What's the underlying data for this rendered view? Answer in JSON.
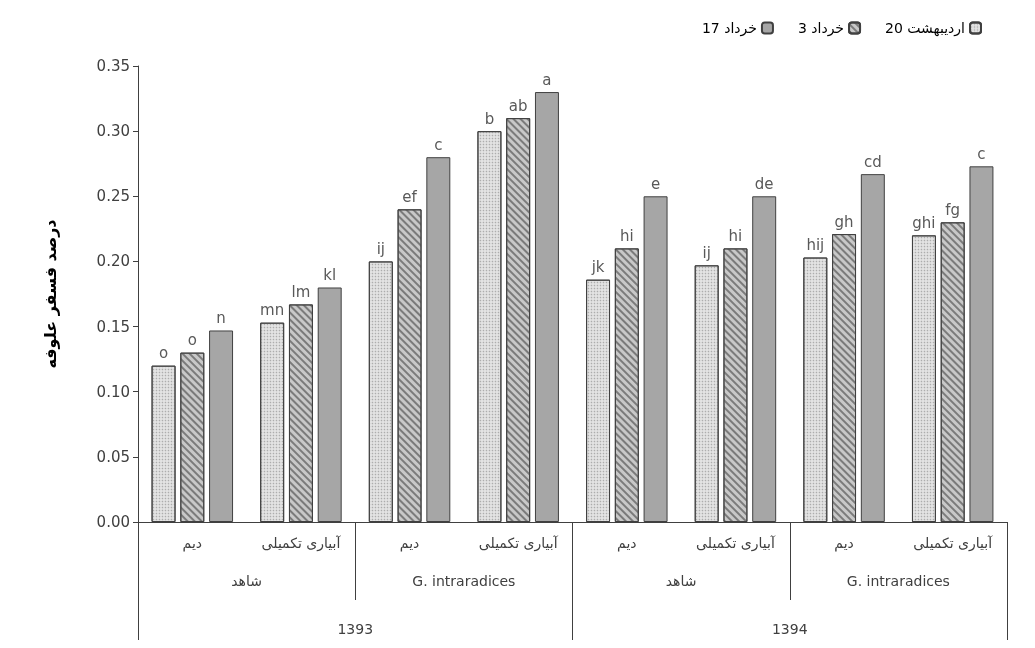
{
  "chart_data": {
    "type": "bar",
    "ylabel": "درصد فسفر علوفه",
    "categories": [
      "دیم",
      "آبیاری تکمیلی",
      "دیم",
      "آبیاری تکمیلی",
      "دیم",
      "آبیاری تکمیلی",
      "دیم",
      "آبیاری تکمیلی"
    ],
    "series": [
      {
        "name": "20 اردیبهشت",
        "color": "#e3e3e3",
        "values": [
          0.12,
          0.153,
          0.2,
          0.3,
          0.186,
          0.197,
          0.203,
          0.22
        ],
        "value_labels": [
          "o",
          "mn",
          "ij",
          "b",
          "jk",
          "ij",
          "hij",
          "ghi"
        ]
      },
      {
        "name": "3 خرداد",
        "color": "#c8c8c8",
        "values": [
          0.13,
          0.167,
          0.24,
          0.31,
          0.21,
          0.21,
          0.221,
          0.23
        ],
        "value_labels": [
          "o",
          "lm",
          "ef",
          "ab",
          "hi",
          "hi",
          "gh",
          "fg"
        ]
      },
      {
        "name": "17 خرداد",
        "color": "#a6a6a6",
        "values": [
          0.147,
          0.18,
          0.28,
          0.33,
          0.25,
          0.25,
          0.267,
          0.273
        ],
        "value_labels": [
          "n",
          "kl",
          "c",
          "a",
          "e",
          "de",
          "cd",
          "c"
        ]
      }
    ],
    "annotations": [
      "شاهد",
      "G. intraradices",
      "شاهد",
      "G. intraradices",
      "1393",
      "1394"
    ],
    "ylim": [
      0,
      0.35
    ],
    "yticks": [
      {
        "value": 0,
        "label": "0.00"
      },
      {
        "value": 0.05,
        "label": "0.05"
      },
      {
        "value": 0.1,
        "label": "0.10"
      },
      {
        "value": 0.15,
        "label": "0.15"
      },
      {
        "value": 0.2,
        "label": "0.20"
      },
      {
        "value": 0.25,
        "label": "0.25"
      },
      {
        "value": 0.3,
        "label": "0.30"
      },
      {
        "value": 0.35,
        "label": "0.35"
      }
    ],
    "grid": false,
    "legend": "top right"
  }
}
